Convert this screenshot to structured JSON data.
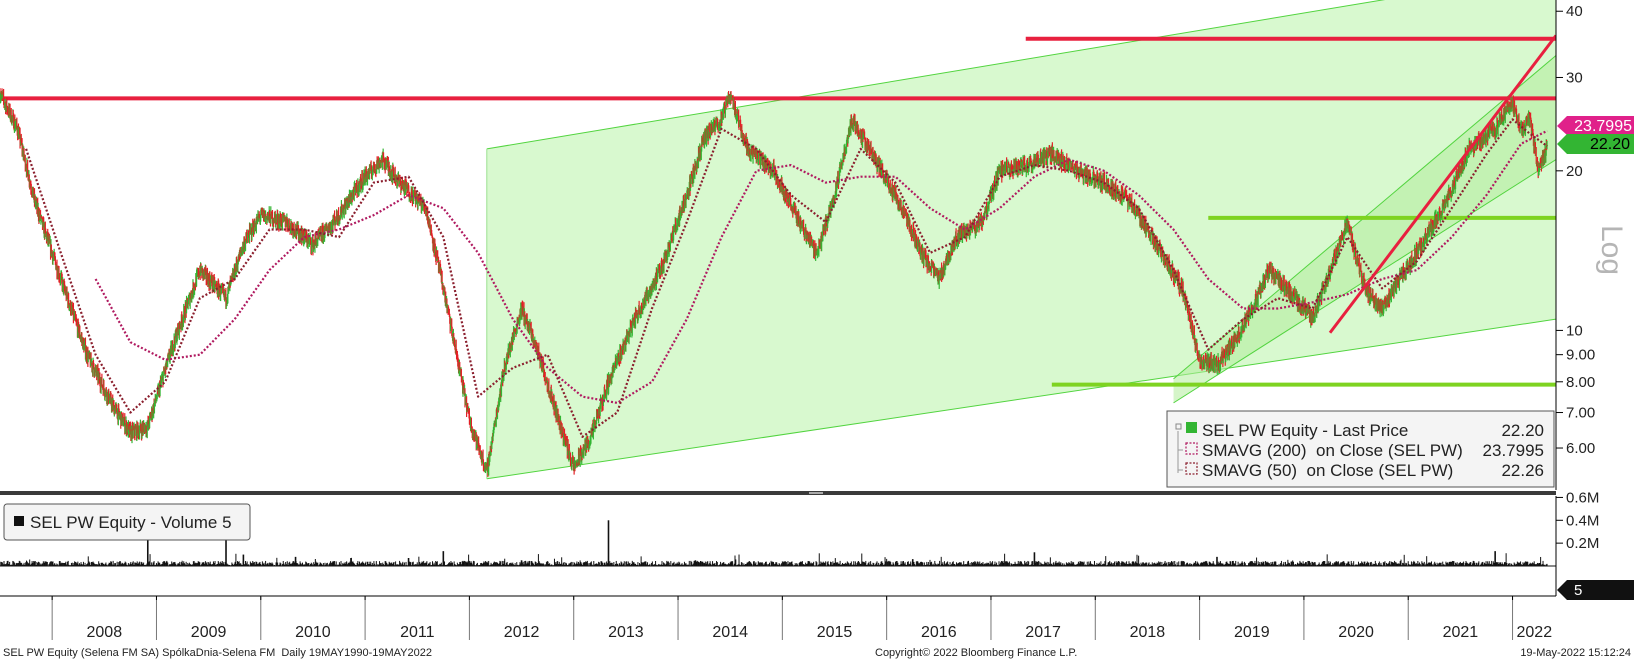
{
  "chart_data": [
    {
      "type": "line",
      "scale": "log",
      "ylim": [
        5.0,
        42.0
      ],
      "y_ticks": [
        {
          "value": 40,
          "label": "40"
        },
        {
          "value": 30,
          "label": "30"
        },
        {
          "value": 20,
          "label": "20"
        },
        {
          "value": 10,
          "label": "10"
        },
        {
          "value": 9,
          "label": "9.00"
        },
        {
          "value": 8,
          "label": "8.00"
        },
        {
          "value": 7,
          "label": "7.00"
        },
        {
          "value": 6,
          "label": "6.00"
        }
      ],
      "ylabel": "Log",
      "x_ticks": [
        "2008",
        "2009",
        "2010",
        "2011",
        "2012",
        "2013",
        "2014",
        "2015",
        "2016",
        "2017",
        "2018",
        "2019",
        "2020",
        "2021",
        "2022"
      ],
      "xlim": [
        "2007-07",
        "2022-06"
      ],
      "legend_position": "bottom-right",
      "series": [
        {
          "name": "SEL PW Equity - Last Price",
          "last_value": "22.20",
          "color": "#33b533",
          "points": [
            [
              "2007-07",
              28.0
            ],
            [
              "2007-09",
              24.0
            ],
            [
              "2007-11",
              17.5
            ],
            [
              "2008-02",
              12.5
            ],
            [
              "2008-05",
              9.0
            ],
            [
              "2008-08",
              7.2
            ],
            [
              "2008-10",
              6.4
            ],
            [
              "2008-12",
              6.6
            ],
            [
              "2009-03",
              9.5
            ],
            [
              "2009-06",
              13.0
            ],
            [
              "2009-09",
              11.5
            ],
            [
              "2009-11",
              14.5
            ],
            [
              "2010-01",
              16.5
            ],
            [
              "2010-04",
              16.0
            ],
            [
              "2010-07",
              14.5
            ],
            [
              "2010-10",
              16.5
            ],
            [
              "2011-01",
              19.5
            ],
            [
              "2011-03",
              21.0
            ],
            [
              "2011-05",
              19.0
            ],
            [
              "2011-08",
              17.0
            ],
            [
              "2011-10",
              12.0
            ],
            [
              "2012-01",
              6.8
            ],
            [
              "2012-03",
              5.4
            ],
            [
              "2012-05",
              8.5
            ],
            [
              "2012-07",
              11.0
            ],
            [
              "2012-09",
              9.0
            ],
            [
              "2012-11",
              7.0
            ],
            [
              "2013-01",
              5.5
            ],
            [
              "2013-03",
              6.3
            ],
            [
              "2013-05",
              8.0
            ],
            [
              "2013-08",
              10.5
            ],
            [
              "2013-11",
              13.0
            ],
            [
              "2014-02",
              18.0
            ],
            [
              "2014-04",
              23.0
            ],
            [
              "2014-06",
              25.0
            ],
            [
              "2014-07",
              28.0
            ],
            [
              "2014-09",
              22.0
            ],
            [
              "2014-12",
              20.0
            ],
            [
              "2015-03",
              16.0
            ],
            [
              "2015-05",
              14.0
            ],
            [
              "2015-07",
              18.0
            ],
            [
              "2015-09",
              25.0
            ],
            [
              "2015-11",
              22.0
            ],
            [
              "2016-02",
              18.0
            ],
            [
              "2016-05",
              14.0
            ],
            [
              "2016-07",
              12.5
            ],
            [
              "2016-09",
              15.0
            ],
            [
              "2016-12",
              16.0
            ],
            [
              "2017-02",
              20.0
            ],
            [
              "2017-05",
              20.5
            ],
            [
              "2017-08",
              21.5
            ],
            [
              "2017-11",
              20.0
            ],
            [
              "2018-02",
              19.0
            ],
            [
              "2018-05",
              17.5
            ],
            [
              "2018-08",
              14.5
            ],
            [
              "2018-11",
              12.0
            ],
            [
              "2019-01",
              8.8
            ],
            [
              "2019-03",
              8.6
            ],
            [
              "2019-05",
              9.5
            ],
            [
              "2019-07",
              11.0
            ],
            [
              "2019-09",
              13.0
            ],
            [
              "2019-12",
              11.5
            ],
            [
              "2020-02",
              10.5
            ],
            [
              "2020-04",
              13.0
            ],
            [
              "2020-06",
              16.0
            ],
            [
              "2020-08",
              12.0
            ],
            [
              "2020-10",
              11.0
            ],
            [
              "2020-12",
              12.5
            ],
            [
              "2021-02",
              14.0
            ],
            [
              "2021-05",
              17.0
            ],
            [
              "2021-08",
              22.0
            ],
            [
              "2021-11",
              24.0
            ],
            [
              "2022-01",
              27.0
            ],
            [
              "2022-02",
              24.0
            ],
            [
              "2022-03",
              25.0
            ],
            [
              "2022-04",
              20.0
            ],
            [
              "2022-05",
              22.2
            ]
          ]
        },
        {
          "name": "SMAVG (200) on Close (SEL PW)",
          "last_value": "23.7995",
          "color": "#b01a60",
          "style": "dotted",
          "points": [
            [
              "2008-06",
              12.5
            ],
            [
              "2008-10",
              9.5
            ],
            [
              "2009-02",
              8.8
            ],
            [
              "2009-06",
              9.0
            ],
            [
              "2009-10",
              10.5
            ],
            [
              "2010-02",
              13.0
            ],
            [
              "2010-06",
              15.0
            ],
            [
              "2010-10",
              15.5
            ],
            [
              "2011-02",
              16.5
            ],
            [
              "2011-06",
              18.0
            ],
            [
              "2011-10",
              17.0
            ],
            [
              "2012-02",
              14.0
            ],
            [
              "2012-06",
              10.5
            ],
            [
              "2012-10",
              8.5
            ],
            [
              "2013-02",
              7.5
            ],
            [
              "2013-06",
              7.3
            ],
            [
              "2013-10",
              8.0
            ],
            [
              "2014-02",
              10.5
            ],
            [
              "2014-06",
              15.0
            ],
            [
              "2014-10",
              20.0
            ],
            [
              "2015-02",
              20.5
            ],
            [
              "2015-06",
              19.0
            ],
            [
              "2015-10",
              19.5
            ],
            [
              "2016-02",
              19.5
            ],
            [
              "2016-06",
              17.0
            ],
            [
              "2016-10",
              15.5
            ],
            [
              "2017-02",
              17.0
            ],
            [
              "2017-06",
              19.5
            ],
            [
              "2017-10",
              21.0
            ],
            [
              "2018-02",
              20.0
            ],
            [
              "2018-06",
              18.0
            ],
            [
              "2018-10",
              15.5
            ],
            [
              "2019-02",
              12.5
            ],
            [
              "2019-06",
              11.0
            ],
            [
              "2019-10",
              11.0
            ],
            [
              "2020-02",
              11.3
            ],
            [
              "2020-06",
              11.7
            ],
            [
              "2020-10",
              12.5
            ],
            [
              "2021-02",
              13.0
            ],
            [
              "2021-06",
              15.0
            ],
            [
              "2021-10",
              18.0
            ],
            [
              "2022-02",
              22.5
            ],
            [
              "2022-05",
              23.8
            ]
          ]
        },
        {
          "name": "SMAVG (50) on Close (SEL PW)",
          "last_value": "22.26",
          "color": "#8b1f2e",
          "style": "dotted",
          "points": [
            [
              "2007-10",
              22.0
            ],
            [
              "2008-02",
              14.0
            ],
            [
              "2008-06",
              9.0
            ],
            [
              "2008-10",
              7.0
            ],
            [
              "2009-02",
              8.0
            ],
            [
              "2009-06",
              11.5
            ],
            [
              "2009-10",
              12.5
            ],
            [
              "2010-02",
              15.5
            ],
            [
              "2010-06",
              15.5
            ],
            [
              "2010-10",
              15.0
            ],
            [
              "2011-02",
              19.0
            ],
            [
              "2011-06",
              19.5
            ],
            [
              "2011-10",
              15.0
            ],
            [
              "2012-02",
              7.5
            ],
            [
              "2012-06",
              8.5
            ],
            [
              "2012-10",
              9.0
            ],
            [
              "2013-02",
              6.3
            ],
            [
              "2013-06",
              7.0
            ],
            [
              "2013-10",
              11.0
            ],
            [
              "2014-02",
              16.0
            ],
            [
              "2014-06",
              24.0
            ],
            [
              "2014-10",
              22.0
            ],
            [
              "2015-02",
              18.0
            ],
            [
              "2015-06",
              16.0
            ],
            [
              "2015-10",
              22.0
            ],
            [
              "2016-02",
              19.0
            ],
            [
              "2016-06",
              14.0
            ],
            [
              "2016-10",
              15.0
            ],
            [
              "2017-02",
              19.5
            ],
            [
              "2017-06",
              20.5
            ],
            [
              "2017-10",
              20.0
            ],
            [
              "2018-02",
              19.0
            ],
            [
              "2018-06",
              17.0
            ],
            [
              "2018-10",
              13.0
            ],
            [
              "2019-02",
              9.2
            ],
            [
              "2019-06",
              10.5
            ],
            [
              "2019-10",
              11.5
            ],
            [
              "2020-02",
              11.0
            ],
            [
              "2020-06",
              15.0
            ],
            [
              "2020-10",
              12.0
            ],
            [
              "2021-02",
              13.5
            ],
            [
              "2021-06",
              17.0
            ],
            [
              "2021-10",
              21.5
            ],
            [
              "2022-01",
              25.0
            ],
            [
              "2022-03",
              23.5
            ],
            [
              "2022-05",
              22.26
            ]
          ]
        }
      ],
      "annotations": {
        "horizontal_lines": [
          {
            "color": "#e8203f",
            "y": 27.4,
            "x_from": "2007-07",
            "x_to": "2022-06"
          },
          {
            "color": "#e8203f",
            "y": 35.5,
            "x_from": "2017-05",
            "x_to": "2022-06"
          },
          {
            "color": "#7ed321",
            "y": 16.3,
            "x_from": "2019-02",
            "x_to": "2022-06"
          },
          {
            "color": "#7ed321",
            "y": 7.9,
            "x_from": "2017-08",
            "x_to": "2022-06"
          }
        ],
        "channels": [
          {
            "color": "#c9f5bf",
            "upper": [
              [
                "2012-03",
                22.0
              ],
              [
                "2020-10",
                42.0
              ]
            ],
            "lower": [
              [
                "2012-03",
                5.25
              ],
              [
                "2022-06",
                10.5
              ]
            ]
          },
          {
            "color": "#b3ec9c",
            "upper": [
              [
                "2018-10",
                8.1
              ],
              [
                "2022-06",
                33.0
              ]
            ],
            "lower": [
              [
                "2018-10",
                7.3
              ],
              [
                "2022-06",
                21.0
              ]
            ]
          }
        ],
        "trendlines": [
          {
            "color": "#e8203f",
            "from": [
              "2020-04",
              9.9
            ],
            "to": [
              "2022-06",
              36.0
            ]
          }
        ]
      },
      "price_labels": [
        {
          "text": "23.7995",
          "color": "#e0218a"
        },
        {
          "text": "22.20",
          "color": "#33b533"
        }
      ]
    },
    {
      "type": "bar",
      "title": "SEL PW Equity - Volume 5",
      "legend_icon_color": "#000000",
      "y_ticks": [
        {
          "value": 0.6,
          "label": "0.6M"
        },
        {
          "value": 0.4,
          "label": "0.4M"
        },
        {
          "value": 0.2,
          "label": "0.2M"
        }
      ],
      "ylim": [
        0,
        0.7
      ],
      "last_value_label": "5",
      "spikes": [
        [
          "2008-12",
          0.45
        ],
        [
          "2009-09",
          0.3
        ],
        [
          "2009-11",
          0.1
        ],
        [
          "2010-05",
          0.08
        ],
        [
          "2011-06",
          0.07
        ],
        [
          "2011-10",
          0.13
        ],
        [
          "2012-07",
          0.05
        ],
        [
          "2013-05",
          0.4
        ],
        [
          "2014-03",
          0.05
        ],
        [
          "2016-04",
          0.06
        ],
        [
          "2017-06",
          0.12
        ],
        [
          "2019-03",
          0.08
        ],
        [
          "2021-11",
          0.13
        ]
      ],
      "baseline_level": 0.025
    }
  ],
  "legend": {
    "items": [
      {
        "label": "SEL PW Equity - Last Price",
        "value": "22.20"
      },
      {
        "label": "SMAVG (200)  on Close (SEL PW)",
        "value": "23.7995"
      },
      {
        "label": "SMAVG (50)  on Close (SEL PW)",
        "value": "22.26"
      }
    ]
  },
  "footer": {
    "left": "SEL PW Equity (Selena FM SA) SpólkaDnia-Selena FM  Daily 19MAY1990-19MAY2022",
    "center": "Copyright© 2022 Bloomberg Finance L.P.",
    "right": "19-May-2022 15:12:24"
  },
  "colors": {
    "price_up": "#33b533",
    "price_down": "#e31f26",
    "channel_fill": "#d8f9cf",
    "red_line": "#e8203f",
    "green_line": "#7ed321",
    "sma200": "#b01a60",
    "sma50": "#8b1f2e"
  }
}
